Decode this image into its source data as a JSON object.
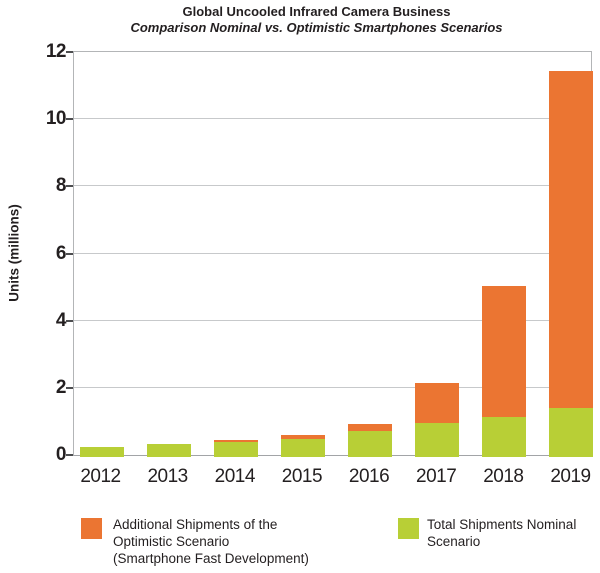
{
  "title": {
    "line1": "Global Uncooled Infrared Camera Business",
    "line2": "Comparison Nominal vs. Optimistic Smartphones Scenarios"
  },
  "y_axis": {
    "label": "Units (millions)",
    "ticks": [
      12,
      10,
      8,
      6,
      4,
      2,
      0
    ]
  },
  "x_axis": {
    "labels": [
      "2012",
      "2013",
      "2014",
      "2015",
      "2016",
      "2017",
      "2018",
      "2019"
    ]
  },
  "chart_data": {
    "type": "bar",
    "stacked": true,
    "title": "Global Uncooled Infrared Camera Business",
    "subtitle": "Comparison Nominal vs. Optimistic Smartphones Scenarios",
    "ylabel": "Units (millions)",
    "xlabel": "",
    "ylim": [
      0,
      12
    ],
    "grid": true,
    "legend_position": "bottom",
    "categories": [
      "2012",
      "2013",
      "2014",
      "2015",
      "2016",
      "2017",
      "2018",
      "2019"
    ],
    "series": [
      {
        "name": "Total Shipments Nominal Scenario",
        "color": "#b8cf36",
        "values": [
          0.3,
          0.4,
          0.45,
          0.55,
          0.78,
          1.0,
          1.2,
          1.45
        ]
      },
      {
        "name": "Additional Shipments of the Optimistic Scenario (Smartphone Fast Development)",
        "color": "#eb7532",
        "values": [
          0,
          0,
          0.05,
          0.1,
          0.19,
          1.2,
          3.9,
          10.05
        ]
      }
    ],
    "stacked_totals": [
      0.3,
      0.4,
      0.5,
      0.65,
      0.97,
      2.2,
      5.1,
      11.5
    ]
  },
  "legend": {
    "items": [
      {
        "color": "#eb7532",
        "lines": [
          "Additional Shipments of the",
          "Optimistic Scenario",
          "(Smartphone Fast Development)"
        ]
      },
      {
        "color": "#b8cf36",
        "lines": [
          "Total Shipments Nominal",
          "Scenario"
        ]
      }
    ]
  },
  "colors": {
    "orange": "#eb7532",
    "green": "#b8cf36",
    "gridline": "#c7c9cb",
    "axis_border": "#b3b5b7",
    "tick_mark": "#4c4d4f",
    "text": "#231f20"
  }
}
